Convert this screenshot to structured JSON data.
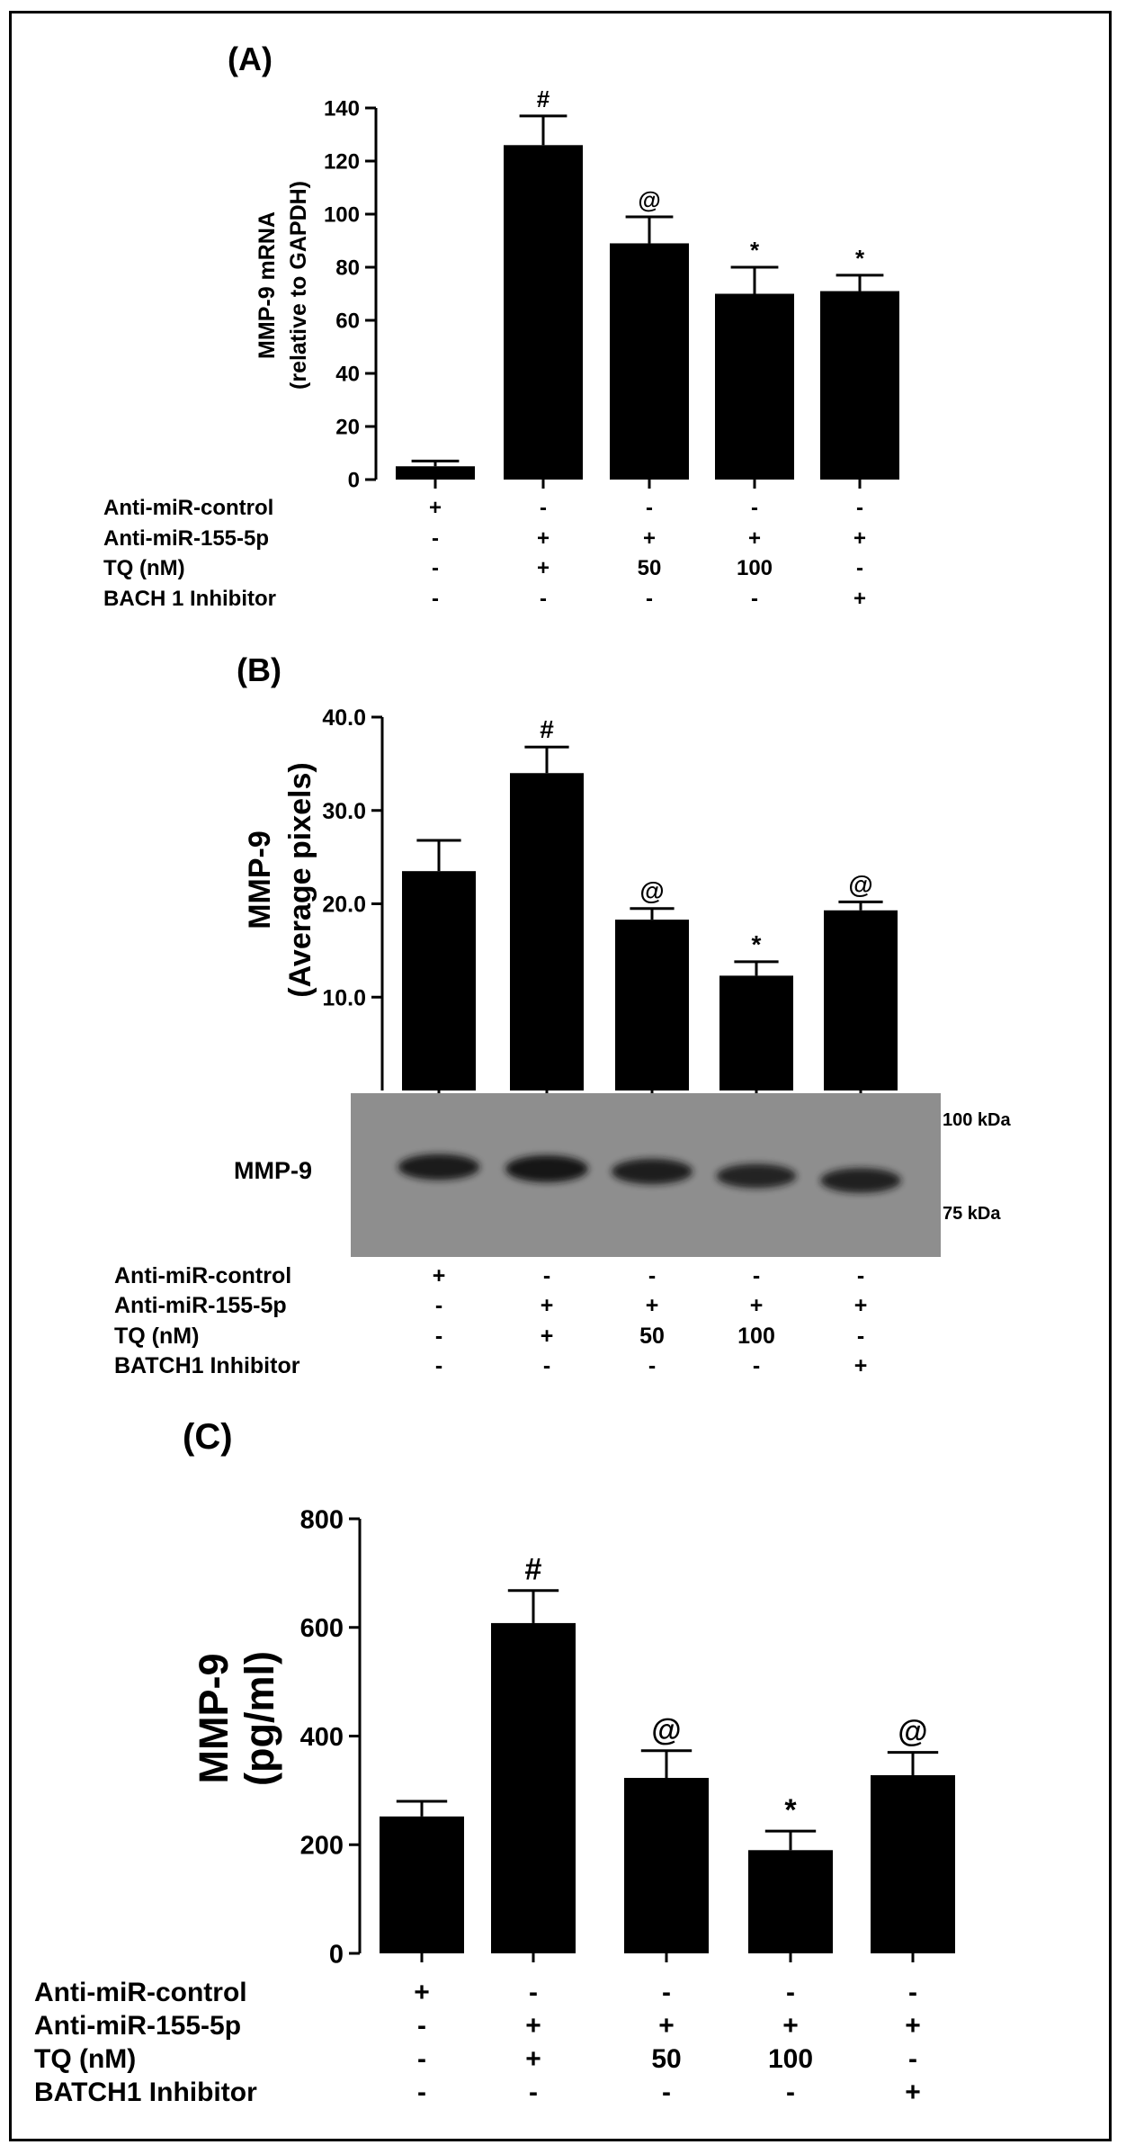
{
  "panels": [
    {
      "label": "(A)",
      "chart_data": {
        "type": "bar",
        "ylabel_lines": [
          "MMP-9 mRNA",
          "(relative to GAPDH)"
        ],
        "ylim": [
          0,
          140
        ],
        "yticks": [
          0,
          20,
          40,
          60,
          80,
          100,
          120,
          140
        ],
        "ytick_labels": [
          "0",
          "20",
          "40",
          "60",
          "80",
          "100",
          "120",
          "140"
        ],
        "values": [
          5,
          126,
          89,
          70,
          71
        ],
        "errors": [
          2,
          11,
          10,
          10,
          6
        ],
        "markers": [
          "",
          "#",
          "@",
          "*",
          "*"
        ]
      },
      "conditions": [
        {
          "name": "Anti-miR-control",
          "values": [
            "+",
            "-",
            "-",
            "-",
            "-"
          ]
        },
        {
          "name": "Anti-miR-155-5p",
          "values": [
            "-",
            "+",
            "+",
            "+",
            "+"
          ]
        },
        {
          "name": "TQ (nM)",
          "values": [
            "-",
            "+",
            "50",
            "100",
            "-"
          ]
        },
        {
          "name": "BACH 1 Inhibitor",
          "values": [
            "-",
            "-",
            "-",
            "-",
            "+"
          ]
        }
      ]
    },
    {
      "label": "(B)",
      "chart_data": {
        "type": "bar",
        "ylabel_lines": [
          "MMP-9",
          "(Average pixels)"
        ],
        "ylim": [
          0,
          40
        ],
        "yticks": [
          10,
          20,
          30,
          40
        ],
        "ytick_labels": [
          "10.0",
          "20.0",
          "30.0",
          "40.0"
        ],
        "values": [
          23.5,
          34,
          18.3,
          12.3,
          19.3
        ],
        "errors": [
          3.3,
          2.8,
          1.2,
          1.5,
          0.9
        ],
        "markers": [
          "",
          "#",
          "@",
          "*",
          "@"
        ]
      },
      "blot": {
        "band_label": "MMP-9",
        "marker_high": "100 kDa",
        "marker_low": "75 kDa",
        "band_intensity": [
          0.9,
          1.0,
          0.85,
          0.75,
          0.8
        ]
      },
      "conditions": [
        {
          "name": "Anti-miR-control",
          "values": [
            "+",
            "-",
            "-",
            "-",
            "-"
          ]
        },
        {
          "name": "Anti-miR-155-5p",
          "values": [
            "-",
            "+",
            "+",
            "+",
            "+"
          ]
        },
        {
          "name": "TQ (nM)",
          "values": [
            "-",
            "+",
            "50",
            "100",
            "-"
          ]
        },
        {
          "name": "BATCH1 Inhibitor",
          "values": [
            "-",
            "-",
            "-",
            "-",
            "+"
          ]
        }
      ]
    },
    {
      "label": "(C)",
      "chart_data": {
        "type": "bar",
        "ylabel_lines": [
          "MMP-9",
          "(pg/ml)"
        ],
        "ylim": [
          0,
          800
        ],
        "yticks": [
          0,
          200,
          400,
          600,
          800
        ],
        "ytick_labels": [
          "0",
          "200",
          "400",
          "600",
          "800"
        ],
        "values": [
          252,
          608,
          323,
          190,
          328
        ],
        "errors": [
          28,
          60,
          50,
          35,
          42
        ],
        "markers": [
          "",
          "#",
          "@",
          "*",
          "@"
        ]
      },
      "conditions": [
        {
          "name": "Anti-miR-control",
          "values": [
            "+",
            "-",
            "-",
            "-",
            "-"
          ]
        },
        {
          "name": "Anti-miR-155-5p",
          "values": [
            "-",
            "+",
            "+",
            "+",
            "+"
          ]
        },
        {
          "name": "TQ (nM)",
          "values": [
            "-",
            "+",
            "50",
            "100",
            "-"
          ]
        },
        {
          "name": "BATCH1 Inhibitor",
          "values": [
            "-",
            "-",
            "-",
            "-",
            "+"
          ]
        }
      ]
    }
  ],
  "colors": {
    "bar": "#000000",
    "blot_bg": "#8e8e8e",
    "band": "#141414"
  }
}
